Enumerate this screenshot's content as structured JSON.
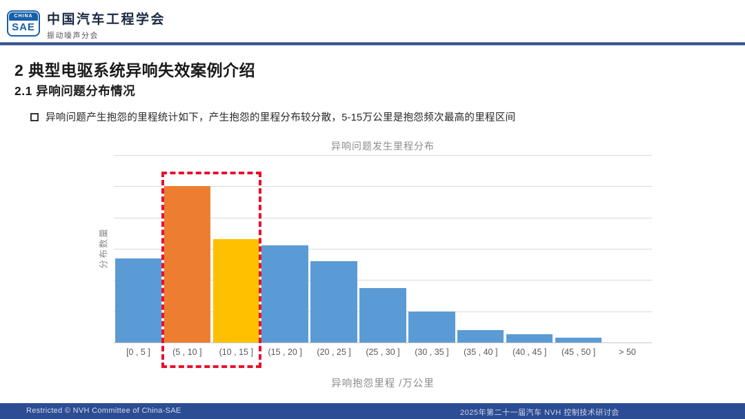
{
  "header": {
    "logo_top": "CHINA",
    "logo_bottom": "SAE",
    "org_name": "中国汽车工程学会",
    "org_sub": "振动噪声分会"
  },
  "title": "2 典型电驱系统异响失效案例介绍",
  "subtitle": "2.1 异响问题分布情况",
  "bullet": "异响问题产生抱怨的里程统计如下，产生抱怨的里程分布较分散，5-15万公里是抱怨频次最高的里程区间",
  "chart_data": {
    "type": "bar",
    "title": "异响问题发生里程分布",
    "xlabel": "异响抱怨里程 /万公里",
    "ylabel": "分布数量",
    "categories": [
      "[0 , 5 ]",
      "(5 , 10 ]",
      "(10 , 15 ]",
      "(15 , 20 ]",
      "(20 , 25 ]",
      "(25 , 30 ]",
      "(30 , 35 ]",
      "(35 , 40 ]",
      "(40 , 45 ]",
      "(45 , 50 ]",
      "> 50"
    ],
    "values": [
      2.7,
      5.0,
      3.3,
      3.1,
      2.6,
      1.75,
      1.0,
      0.4,
      0.26,
      0.15,
      0
    ],
    "value_note": "y axis has no tick labels; values estimated in gridline units (1 unit = 1 gridline spacing)",
    "ylim": [
      0,
      6
    ],
    "grid": true,
    "y_tick_labels_visible": false,
    "bar_colors": [
      "#5B9BD5",
      "#ED7D31",
      "#FFC000",
      "#5B9BD5",
      "#5B9BD5",
      "#5B9BD5",
      "#5B9BD5",
      "#5B9BD5",
      "#5B9BD5",
      "#5B9BD5",
      "#5B9BD5"
    ],
    "highlight": {
      "categories": [
        "(5 , 10 ]",
        "(10 , 15 ]"
      ],
      "style": "red dashed box enclosing the two highest bars and their x labels",
      "color": "#E8112D"
    }
  },
  "footer": {
    "left": "Restricted © NVH Committee of China-SAE",
    "right": "2025年第二十一届汽车 NVH 控制技术研讨会"
  },
  "colors": {
    "bar_default": "#5B9BD5",
    "bar_highlight_1": "#ED7D31",
    "bar_highlight_2": "#FFC000",
    "highlight_box": "#E8112D",
    "divider_blue": "#2E4D8C",
    "footer_bg": "#2C4C94",
    "logo_blue": "#1660A8",
    "gridline": "#D9D9D9",
    "muted_text": "#8C8C8C"
  }
}
